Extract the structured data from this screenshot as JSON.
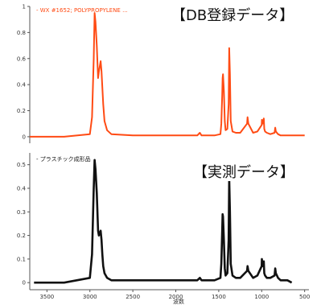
{
  "chart_data": [
    {
      "type": "line",
      "legend_text": "- WX #1652; POLYPROPYLENE ...",
      "label": "【DB登録データ】",
      "color": "#ff4b14",
      "xlim": [
        3700,
        450
      ],
      "ylim": [
        -0.05,
        1.0
      ],
      "yticks": [
        0,
        0.2,
        0.4,
        0.6,
        0.8,
        1
      ],
      "ytick_labels": [
        "0",
        "0.2",
        "0.4",
        "0.6",
        "0.8",
        "1"
      ],
      "series": [
        {
          "x": [
            3700,
            3300,
            3000,
            2975,
            2955,
            2945,
            2935,
            2920,
            2905,
            2895,
            2875,
            2865,
            2855,
            2845,
            2830,
            2800,
            2750,
            2500,
            2200,
            1750,
            1720,
            1700,
            1550,
            1480,
            1470,
            1460,
            1455,
            1450,
            1440,
            1430,
            1420,
            1400,
            1385,
            1378,
            1370,
            1360,
            1340,
            1300,
            1250,
            1170,
            1165,
            1155,
            1100,
            1050,
            1000,
            998,
            990,
            975,
            970,
            960,
            940,
            900,
            850,
            842,
            835,
            810,
            780,
            700,
            600,
            500
          ],
          "y": [
            0.0,
            0.0,
            0.02,
            0.15,
            0.6,
            0.95,
            0.88,
            0.7,
            0.45,
            0.5,
            0.58,
            0.5,
            0.38,
            0.25,
            0.12,
            0.05,
            0.02,
            0.01,
            0.01,
            0.01,
            0.03,
            0.01,
            0.01,
            0.02,
            0.1,
            0.32,
            0.45,
            0.48,
            0.35,
            0.12,
            0.05,
            0.06,
            0.25,
            0.68,
            0.48,
            0.12,
            0.04,
            0.03,
            0.03,
            0.1,
            0.15,
            0.1,
            0.03,
            0.04,
            0.09,
            0.13,
            0.1,
            0.14,
            0.06,
            0.04,
            0.03,
            0.02,
            0.03,
            0.07,
            0.04,
            0.02,
            0.01,
            0.01,
            0.01,
            0.01
          ]
        }
      ]
    },
    {
      "type": "line",
      "legend_text": "- プラスチック成形品",
      "label": "【実測データ】",
      "color": "#111111",
      "xlim": [
        3700,
        450
      ],
      "ylim": [
        -0.03,
        0.55
      ],
      "yticks": [
        0,
        0.1,
        0.2,
        0.3,
        0.4,
        0.5
      ],
      "ytick_labels": [
        "0",
        "0.1",
        "0.2",
        "0.3",
        "0.4",
        "0.5"
      ],
      "xticks": [
        3500,
        3000,
        2500,
        2000,
        1500,
        1000,
        500
      ],
      "xtick_labels": [
        "3500",
        "3000",
        "2500",
        "2000",
        "1500",
        "1000",
        "500"
      ],
      "xlabel": "波数",
      "series": [
        {
          "x": [
            3650,
            3300,
            3000,
            2975,
            2955,
            2945,
            2935,
            2920,
            2905,
            2895,
            2875,
            2865,
            2855,
            2845,
            2830,
            2800,
            2750,
            2500,
            2200,
            1750,
            1720,
            1700,
            1550,
            1480,
            1470,
            1460,
            1455,
            1450,
            1440,
            1430,
            1420,
            1400,
            1385,
            1378,
            1370,
            1360,
            1340,
            1300,
            1250,
            1170,
            1165,
            1155,
            1100,
            1050,
            1000,
            998,
            990,
            975,
            970,
            960,
            940,
            900,
            850,
            842,
            835,
            810,
            780,
            700,
            650
          ],
          "y": [
            0.0,
            0.0,
            0.02,
            0.12,
            0.4,
            0.52,
            0.48,
            0.38,
            0.22,
            0.2,
            0.22,
            0.18,
            0.12,
            0.07,
            0.04,
            0.02,
            0.01,
            0.01,
            0.01,
            0.01,
            0.02,
            0.01,
            0.01,
            0.02,
            0.08,
            0.22,
            0.29,
            0.28,
            0.18,
            0.06,
            0.03,
            0.04,
            0.18,
            0.44,
            0.3,
            0.08,
            0.03,
            0.02,
            0.02,
            0.05,
            0.07,
            0.05,
            0.02,
            0.03,
            0.07,
            0.1,
            0.07,
            0.09,
            0.04,
            0.03,
            0.02,
            0.02,
            0.03,
            0.06,
            0.04,
            0.02,
            0.01,
            0.01,
            0.0
          ]
        }
      ]
    }
  ]
}
